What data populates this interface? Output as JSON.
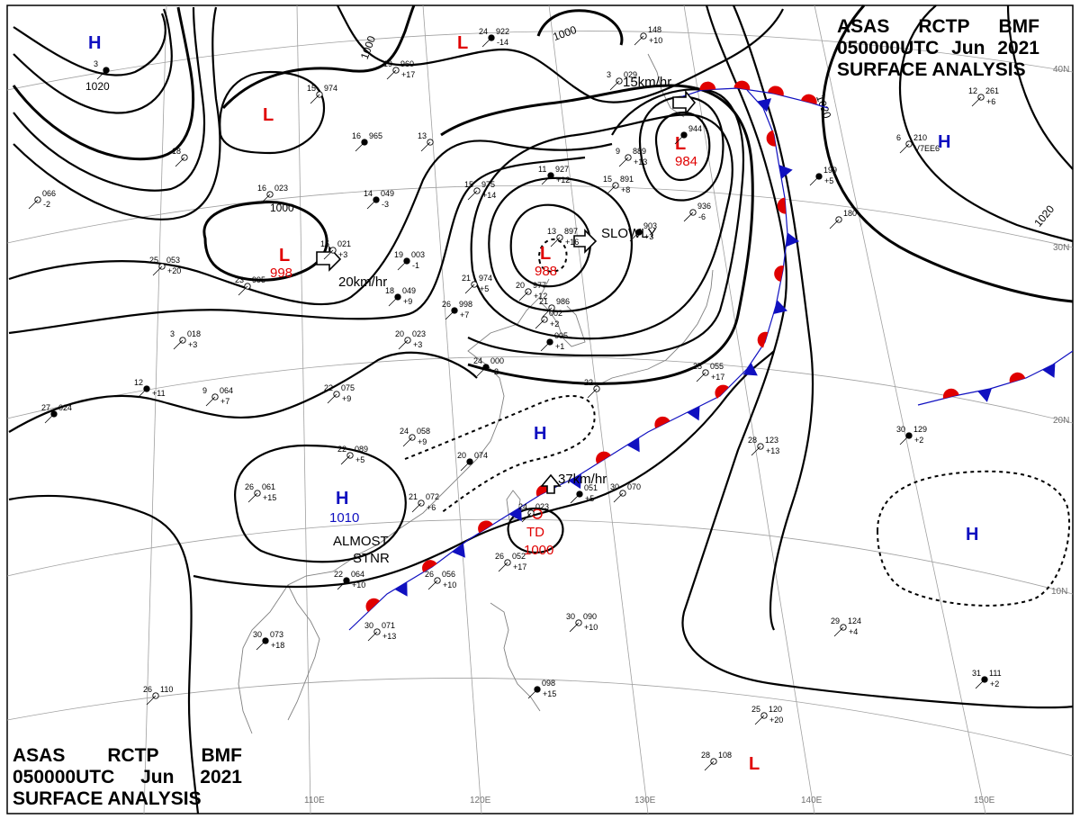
{
  "header_top": {
    "line1": [
      "ASAS",
      "RCTP",
      "BMF"
    ],
    "line2": [
      "050000UTC",
      "Jun",
      "2021"
    ],
    "line3": "SURFACE ANALYSIS"
  },
  "header_bottom": {
    "line1": [
      "ASAS",
      "RCTP",
      "BMF"
    ],
    "line2": [
      "050000UTC",
      "Jun",
      "2021"
    ],
    "line3": "SURFACE ANALYSIS"
  },
  "colors": {
    "isobar": "#000000",
    "low": "#e00000",
    "high": "#1010c0",
    "warm_front": "#e00000",
    "cold_front": "#1010c0",
    "grid": "#a0a0a0",
    "coast": "#808080"
  },
  "lon_labels": [
    "110E",
    "120E",
    "130E",
    "140E",
    "150E"
  ],
  "lat_labels": [
    "40N",
    "30N",
    "20N",
    "10N"
  ],
  "isobar_labels": [
    "1020",
    "1000",
    "1000",
    "1000",
    "1020",
    "1020"
  ],
  "pressure_centers": [
    {
      "type": "H",
      "value": ""
    },
    {
      "type": "L",
      "value": ""
    },
    {
      "type": "L",
      "value": ""
    },
    {
      "type": "L",
      "value": "998"
    },
    {
      "type": "L",
      "value": "988"
    },
    {
      "type": "L",
      "value": "984"
    },
    {
      "type": "H",
      "value": ""
    },
    {
      "type": "H",
      "value": ""
    },
    {
      "type": "H",
      "value": "1010"
    },
    {
      "type": "TD",
      "value": "1000"
    },
    {
      "type": "H",
      "value": ""
    },
    {
      "type": "L",
      "value": ""
    }
  ],
  "motion_labels": [
    "15km/hr",
    "SLOWLY",
    "20km/hr",
    "37km/hr",
    "ALMOST",
    "STNR"
  ],
  "stations": [
    {
      "t": "3",
      "p": "",
      "v": ""
    },
    {
      "t": "19",
      "p": "960",
      "v": "+17"
    },
    {
      "t": "15",
      "p": "974",
      "v": ""
    },
    {
      "t": "16",
      "p": "965",
      "v": ""
    },
    {
      "t": "13",
      "p": "",
      "v": ""
    },
    {
      "t": "18",
      "p": "",
      "v": ""
    },
    {
      "t": "24",
      "p": "922",
      "v": "-14"
    },
    {
      "t": "",
      "p": "148",
      "v": "+10"
    },
    {
      "t": "3",
      "p": "029",
      "v": ""
    },
    {
      "t": "11",
      "p": "927",
      "v": "+12"
    },
    {
      "t": "9",
      "p": "889",
      "v": "+13"
    },
    {
      "t": "15",
      "p": "891",
      "v": "+8"
    },
    {
      "t": "",
      "p": "944",
      "v": ""
    },
    {
      "t": "15",
      "p": "975",
      "v": "+14"
    },
    {
      "t": "16",
      "p": "023",
      "v": ""
    },
    {
      "t": "14",
      "p": "049",
      "v": "-3"
    },
    {
      "t": "",
      "p": "066",
      "v": "-2"
    },
    {
      "t": "13",
      "p": "897",
      "v": "+16"
    },
    {
      "t": "",
      "p": "903",
      "v": "+3"
    },
    {
      "t": "",
      "p": "936",
      "v": "-6"
    },
    {
      "t": "15",
      "p": "021",
      "v": "+3"
    },
    {
      "t": "19",
      "p": "003",
      "v": "-1"
    },
    {
      "t": "25",
      "p": "053",
      "v": "+20"
    },
    {
      "t": "23",
      "p": "995",
      "v": ""
    },
    {
      "t": "18",
      "p": "049",
      "v": "+9"
    },
    {
      "t": "21",
      "p": "974",
      "v": "+5"
    },
    {
      "t": "20",
      "p": "977",
      "v": "+12"
    },
    {
      "t": "26",
      "p": "998",
      "v": "+7"
    },
    {
      "t": "21",
      "p": "986",
      "v": ""
    },
    {
      "t": "",
      "p": "002",
      "v": "+2"
    },
    {
      "t": "",
      "p": "005",
      "v": "+1"
    },
    {
      "t": "3",
      "p": "018",
      "v": "+3"
    },
    {
      "t": "20",
      "p": "023",
      "v": "+3"
    },
    {
      "t": "12",
      "p": "",
      "v": "+11"
    },
    {
      "t": "9",
      "p": "064",
      "v": "+7"
    },
    {
      "t": "22",
      "p": "075",
      "v": "+9"
    },
    {
      "t": "24",
      "p": "000",
      "v": "-2"
    },
    {
      "t": "25",
      "p": "055",
      "v": "+17"
    },
    {
      "t": "22",
      "p": "",
      "v": ""
    },
    {
      "t": "27",
      "p": "024",
      "v": ""
    },
    {
      "t": "24",
      "p": "058",
      "v": "+9"
    },
    {
      "t": "22",
      "p": "089",
      "v": "+5"
    },
    {
      "t": "20",
      "p": "074",
      "v": ""
    },
    {
      "t": "26",
      "p": "061",
      "v": "+15"
    },
    {
      "t": "21",
      "p": "072",
      "v": "+6"
    },
    {
      "t": "",
      "p": "051",
      "v": "+5"
    },
    {
      "t": "30",
      "p": "070",
      "v": ""
    },
    {
      "t": "28",
      "p": "123",
      "v": "+13"
    },
    {
      "t": "30",
      "p": "129",
      "v": "+2"
    },
    {
      "t": "6",
      "p": "210",
      "v": "V7EE6"
    },
    {
      "t": "12",
      "p": "261",
      "v": "+6"
    },
    {
      "t": "",
      "p": "199",
      "v": "+5"
    },
    {
      "t": "",
      "p": "180",
      "v": ""
    },
    {
      "t": "24",
      "p": "023",
      "v": ""
    },
    {
      "t": "22",
      "p": "064",
      "v": "+10"
    },
    {
      "t": "26",
      "p": "056",
      "v": "+10"
    },
    {
      "t": "26",
      "p": "052",
      "v": "+17"
    },
    {
      "t": "30",
      "p": "073",
      "v": "+18"
    },
    {
      "t": "30",
      "p": "071",
      "v": "+13"
    },
    {
      "t": "30",
      "p": "090",
      "v": "+10"
    },
    {
      "t": "",
      "p": "098",
      "v": "+15"
    },
    {
      "t": "26",
      "p": "110",
      "v": ""
    },
    {
      "t": "29",
      "p": "124",
      "v": "+4"
    },
    {
      "t": "31",
      "p": "111",
      "v": "+2"
    },
    {
      "t": "25",
      "p": "120",
      "v": "+20"
    },
    {
      "t": "28",
      "p": "108",
      "v": ""
    }
  ]
}
